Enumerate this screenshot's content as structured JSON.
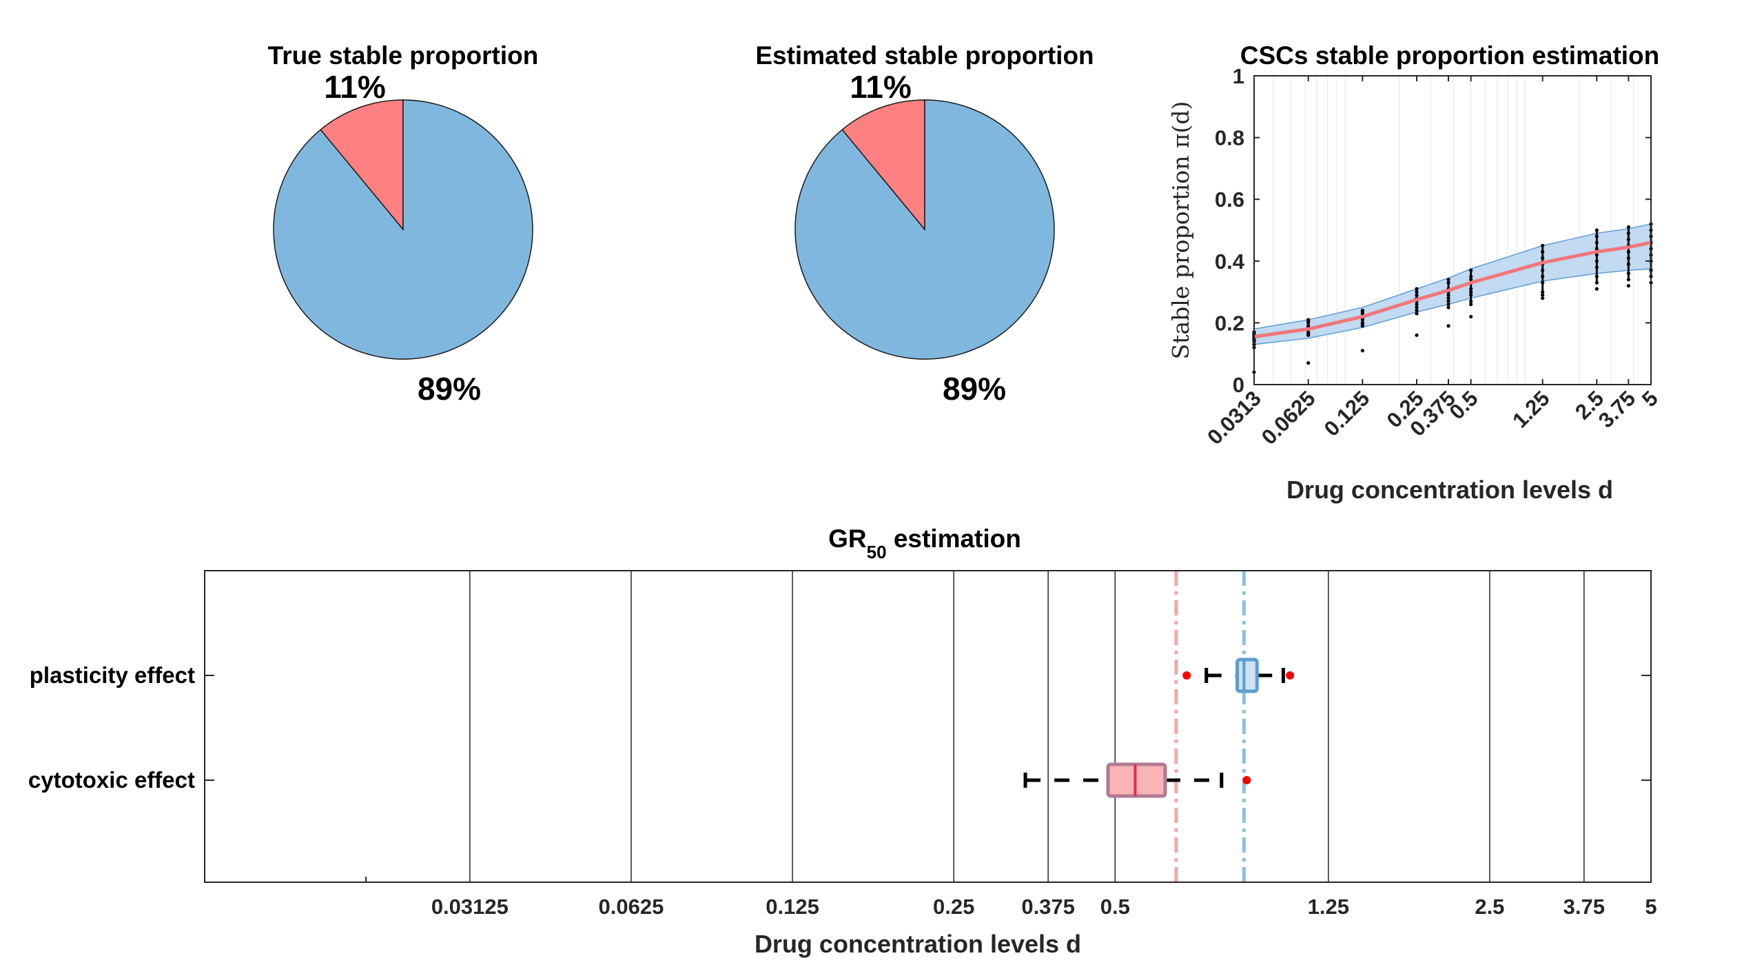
{
  "colors": {
    "blue": "#80b7de",
    "red": "#fd8180",
    "band": "#c2daf2",
    "band_edge": "#5f9fd9",
    "median_line": "#f2767b",
    "dots": "#000000",
    "outlier": "#ff0000",
    "box_red_fill": "#fbb4b6",
    "box_red_edge": "#b07a90",
    "box_blue_fill": "#cfe1f1",
    "box_blue_edge": "#5e9cd3",
    "ref_red": "#f7a4a4",
    "ref_blue": "#8ec1e1"
  },
  "pies": [
    {
      "title": "True stable proportion",
      "slices": [
        {
          "label": "11%",
          "value": 11,
          "color": "#fd8180"
        },
        {
          "label": "89%",
          "value": 89,
          "color": "#80b7de"
        }
      ]
    },
    {
      "title": "Estimated stable proportion",
      "slices": [
        {
          "label": "11%",
          "value": 11,
          "color": "#fd8180"
        },
        {
          "label": "89%",
          "value": 89,
          "color": "#80b7de"
        }
      ]
    }
  ],
  "chart_data": [
    {
      "type": "pie",
      "title": "True stable proportion",
      "labels": [
        "11%",
        "89%"
      ],
      "values": [
        11,
        89
      ]
    },
    {
      "type": "pie",
      "title": "Estimated stable proportion",
      "labels": [
        "11%",
        "89%"
      ],
      "values": [
        11,
        89
      ]
    },
    {
      "type": "line",
      "title": "CSCs stable proportion estimation",
      "xlabel": "Drug concentration levels d",
      "ylabel": "Stable proportion π(d)",
      "xscale": "log",
      "xlim": [
        0.03125,
        5
      ],
      "ylim": [
        0,
        1
      ],
      "xtick_values": [
        0.03125,
        0.0625,
        0.125,
        0.25,
        0.375,
        0.5,
        1.25,
        2.5,
        3.75,
        5
      ],
      "xtick_labels": [
        "0.0313",
        "0.0625",
        "0.125",
        "0.25",
        "0.375",
        "0.5",
        "1.25",
        "2.5",
        "3.75",
        "5"
      ],
      "ytick_values": [
        0,
        0.2,
        0.4,
        0.6,
        0.8,
        1
      ],
      "ytick_labels": [
        "0",
        "0.2",
        "0.4",
        "0.6",
        "0.8",
        "1"
      ],
      "grid": "x-minor",
      "series": [
        {
          "name": "estimate",
          "x": [
            0.03125,
            0.0625,
            0.125,
            0.25,
            0.375,
            0.5,
            1.25,
            2.5,
            3.75,
            5
          ],
          "values": [
            0.155,
            0.18,
            0.22,
            0.275,
            0.305,
            0.33,
            0.395,
            0.43,
            0.445,
            0.46
          ]
        },
        {
          "name": "band_lower",
          "x": [
            0.03125,
            0.0625,
            0.125,
            0.25,
            0.375,
            0.5,
            1.25,
            2.5,
            3.75,
            5
          ],
          "values": [
            0.13,
            0.15,
            0.185,
            0.235,
            0.26,
            0.28,
            0.335,
            0.36,
            0.37,
            0.375
          ]
        },
        {
          "name": "band_upper",
          "x": [
            0.03125,
            0.0625,
            0.125,
            0.25,
            0.375,
            0.5,
            1.25,
            2.5,
            3.75,
            5
          ],
          "values": [
            0.18,
            0.21,
            0.25,
            0.31,
            0.345,
            0.375,
            0.45,
            0.49,
            0.505,
            0.52
          ]
        }
      ],
      "scatter": [
        {
          "x": 0.03125,
          "y": [
            0.04,
            0.12,
            0.13,
            0.14,
            0.145,
            0.15,
            0.155,
            0.16,
            0.165,
            0.17
          ]
        },
        {
          "x": 0.0625,
          "y": [
            0.07,
            0.16,
            0.165,
            0.17,
            0.18,
            0.185,
            0.19,
            0.2,
            0.205,
            0.21
          ]
        },
        {
          "x": 0.125,
          "y": [
            0.11,
            0.19,
            0.195,
            0.2,
            0.21,
            0.215,
            0.22,
            0.23,
            0.235,
            0.24
          ]
        },
        {
          "x": 0.25,
          "y": [
            0.16,
            0.23,
            0.24,
            0.25,
            0.26,
            0.27,
            0.28,
            0.29,
            0.3,
            0.31
          ]
        },
        {
          "x": 0.375,
          "y": [
            0.19,
            0.25,
            0.26,
            0.27,
            0.28,
            0.29,
            0.3,
            0.31,
            0.33,
            0.34
          ]
        },
        {
          "x": 0.5,
          "y": [
            0.22,
            0.26,
            0.27,
            0.29,
            0.3,
            0.31,
            0.33,
            0.34,
            0.35,
            0.37
          ]
        },
        {
          "x": 1.25,
          "y": [
            0.28,
            0.29,
            0.3,
            0.33,
            0.35,
            0.37,
            0.39,
            0.41,
            0.43,
            0.45
          ]
        },
        {
          "x": 2.5,
          "y": [
            0.31,
            0.33,
            0.35,
            0.38,
            0.4,
            0.42,
            0.44,
            0.46,
            0.48,
            0.5
          ]
        },
        {
          "x": 3.75,
          "y": [
            0.32,
            0.34,
            0.36,
            0.39,
            0.41,
            0.43,
            0.45,
            0.47,
            0.49,
            0.51
          ]
        },
        {
          "x": 5,
          "y": [
            0.33,
            0.35,
            0.37,
            0.4,
            0.42,
            0.44,
            0.46,
            0.48,
            0.5,
            0.52
          ]
        }
      ]
    },
    {
      "type": "boxplot",
      "title": "GR",
      "title_sub": "50",
      "title_suffix": " estimation",
      "xlabel": "Drug concentration levels d",
      "xscale": "log",
      "xlim": [
        0.01,
        5
      ],
      "xtick_values": [
        0.03125,
        0.0625,
        0.125,
        0.25,
        0.375,
        0.5,
        1.25,
        2.5,
        3.75,
        5
      ],
      "xtick_labels": [
        "0.03125",
        "0.0625",
        "0.125",
        "0.25",
        "0.375",
        "0.5",
        "1.25",
        "2.5",
        "3.75",
        "5"
      ],
      "minor_tick_values": [
        0.02
      ],
      "grid": "x",
      "categories": [
        "plasticity effect",
        "cytotoxic effect"
      ],
      "boxes": [
        {
          "name": "plasticity effect",
          "whisker_low": 0.74,
          "q1": 0.845,
          "median": 0.87,
          "q3": 0.92,
          "whisker_high": 1.03,
          "outliers": [
            0.68,
            1.06
          ],
          "color": "blue"
        },
        {
          "name": "cytotoxic effect",
          "whisker_low": 0.34,
          "q1": 0.485,
          "median": 0.545,
          "q3": 0.62,
          "whisker_high": 0.79,
          "outliers": [
            0.88
          ],
          "color": "red"
        }
      ],
      "reference_lines": [
        {
          "name": "cytotoxic reference",
          "x": 0.65,
          "color": "red"
        },
        {
          "name": "plasticity reference",
          "x": 0.87,
          "color": "blue"
        }
      ]
    }
  ]
}
